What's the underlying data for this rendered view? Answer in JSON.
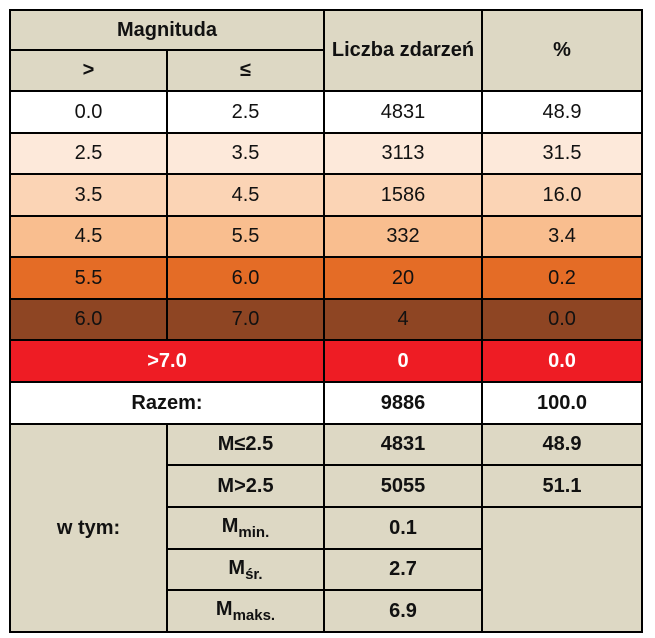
{
  "header": {
    "magnitude": "Magnituda",
    "greater": ">",
    "less_equal": "≤",
    "count": "Liczba zdarzeń",
    "percent": "%"
  },
  "rows": [
    {
      "from": "0.0",
      "to": "2.5",
      "count": "4831",
      "percent": "48.9",
      "color": "#ffffff"
    },
    {
      "from": "2.5",
      "to": "3.5",
      "count": "3113",
      "percent": "31.5",
      "color": "#fde9da"
    },
    {
      "from": "3.5",
      "to": "4.5",
      "count": "1586",
      "percent": "16.0",
      "color": "#fbd4b5"
    },
    {
      "from": "4.5",
      "to": "5.5",
      "count": "332",
      "percent": "3.4",
      "color": "#f9be8f"
    },
    {
      "from": "5.5",
      "to": "6.0",
      "count": "20",
      "percent": "0.2",
      "color": "#e46c26"
    },
    {
      "from": "6.0",
      "to": "7.0",
      "count": "4",
      "percent": "0.0",
      "color": "#8e4523"
    }
  ],
  "above": {
    "label": ">7.0",
    "count": "0",
    "percent": "0.0",
    "color": "#ee1c24",
    "text_color": "#ffffff"
  },
  "total": {
    "label": "Razem:",
    "count": "9886",
    "percent": "100.0"
  },
  "breakdown": {
    "label": "w tym:",
    "items": [
      {
        "label": "M≤2.5",
        "value": "4831",
        "percent": "48.9"
      },
      {
        "label": "M>2.5",
        "value": "5055",
        "percent": "51.1"
      },
      {
        "base": "M",
        "sub": "min.",
        "value": "0.1"
      },
      {
        "base": "M",
        "sub": "śr.",
        "value": "2.7"
      },
      {
        "base": "M",
        "sub": "maks.",
        "value": "6.9"
      }
    ]
  },
  "colors": {
    "header_bg": "#ddd8c4",
    "border": "#000000"
  }
}
